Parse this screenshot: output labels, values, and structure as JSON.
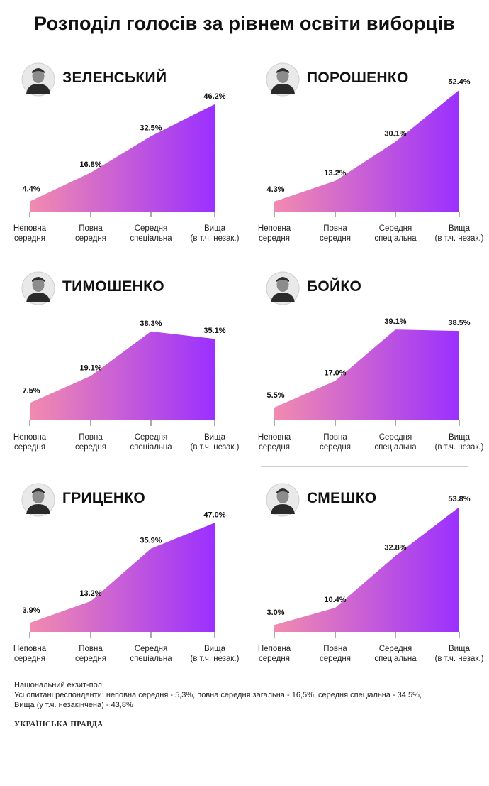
{
  "title": "Розподіл голосів за рівнем освіти виборців",
  "colors": {
    "gradient_start": "#F28BAF",
    "gradient_end": "#9B30FF"
  },
  "categories": [
    "Неповна середня",
    "Повна середня",
    "Середня спеціальна",
    "Вища (в т.ч. незак.)"
  ],
  "category_lines": [
    [
      "Неповна",
      "середня"
    ],
    [
      "Повна",
      "середня"
    ],
    [
      "Середня",
      "спеціальна"
    ],
    [
      "Вища",
      "(в т.ч. незак.)"
    ]
  ],
  "chart_data": [
    {
      "type": "area",
      "name": "ЗЕЛЕНСЬКИЙ",
      "photo_icon": "zelensky-photo",
      "values": [
        4.4,
        16.8,
        32.5,
        46.2
      ],
      "labels": [
        "4.4%",
        "16.8%",
        "32.5%",
        "46.2%"
      ]
    },
    {
      "type": "area",
      "name": "ПОРОШЕНКО",
      "photo_icon": "poroshenko-photo",
      "values": [
        4.3,
        13.2,
        30.1,
        52.4
      ],
      "labels": [
        "4.3%",
        "13.2%",
        "30.1%",
        "52.4%"
      ]
    },
    {
      "type": "area",
      "name": "ТИМОШЕНКО",
      "photo_icon": "tymoshenko-photo",
      "values": [
        7.5,
        19.1,
        38.3,
        35.1
      ],
      "labels": [
        "7.5%",
        "19.1%",
        "38.3%",
        "35.1%"
      ]
    },
    {
      "type": "area",
      "name": "БОЙКО",
      "photo_icon": "boyko-photo",
      "values": [
        5.5,
        17.0,
        39.1,
        38.5
      ],
      "labels": [
        "5.5%",
        "17.0%",
        "39.1%",
        "38.5%"
      ]
    },
    {
      "type": "area",
      "name": "ГРИЦЕНКО",
      "photo_icon": "hrytsenko-photo",
      "values": [
        3.9,
        13.2,
        35.9,
        47.0
      ],
      "labels": [
        "3.9%",
        "13.2%",
        "35.9%",
        "47.0%"
      ]
    },
    {
      "type": "area",
      "name": "СМЕШКО",
      "photo_icon": "smeshko-photo",
      "values": [
        3.0,
        10.4,
        32.8,
        53.8
      ],
      "labels": [
        "3.0%",
        "10.4%",
        "32.8%",
        "53.8%"
      ]
    }
  ],
  "footer": {
    "line1": "Національний екзит-пол",
    "line2": "Усі опитані респонденти: неповна середня - 5,3%, повна середня загальна - 16,5%, середня спеціальна - 34,5%,",
    "line3": "Вища (у т.ч. незакінчена) - 43,8%"
  },
  "brand": "УКРАЇНСЬКА ПРАВДА"
}
